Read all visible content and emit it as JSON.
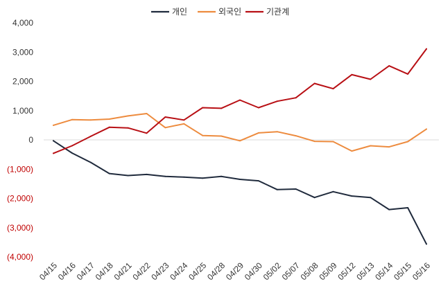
{
  "chart_data": {
    "type": "line",
    "title": "",
    "xlabel": "",
    "ylabel": "",
    "ylim": [
      -4000,
      4000
    ],
    "y_ticks": [
      4000,
      3000,
      2000,
      1000,
      0,
      -1000,
      -2000,
      -3000,
      -4000
    ],
    "y_tick_labels": [
      "4,000",
      "3,000",
      "2,000",
      "1,000",
      "0",
      "(1,000)",
      "(2,000)",
      "(3,000)",
      "(4,000)"
    ],
    "negative_tick_color": "#c00000",
    "grid": false,
    "legend_position": "top-center",
    "categories": [
      "04/15",
      "04/16",
      "04/17",
      "04/18",
      "04/21",
      "04/22",
      "04/23",
      "04/24",
      "04/25",
      "04/28",
      "04/29",
      "04/30",
      "05/02",
      "05/07",
      "05/08",
      "05/09",
      "05/12",
      "05/13",
      "05/14",
      "05/15",
      "05/16"
    ],
    "series": [
      {
        "name": "개인",
        "color": "#1f2a3c",
        "values": [
          -30,
          -450,
          -770,
          -1150,
          -1220,
          -1180,
          -1250,
          -1270,
          -1310,
          -1250,
          -1350,
          -1400,
          -1700,
          -1680,
          -1970,
          -1770,
          -1920,
          -1970,
          -2380,
          -2320,
          -3560
        ]
      },
      {
        "name": "외국인",
        "color": "#ed8b3e",
        "values": [
          500,
          690,
          680,
          710,
          820,
          900,
          420,
          550,
          150,
          130,
          -30,
          240,
          280,
          140,
          -50,
          -60,
          -380,
          -200,
          -240,
          -60,
          370
        ]
      },
      {
        "name": "기관계",
        "color": "#b80f14",
        "values": [
          -460,
          -200,
          120,
          430,
          410,
          230,
          780,
          680,
          1100,
          1080,
          1360,
          1100,
          1320,
          1440,
          1930,
          1750,
          2230,
          2070,
          2530,
          2250,
          3110
        ]
      }
    ]
  }
}
